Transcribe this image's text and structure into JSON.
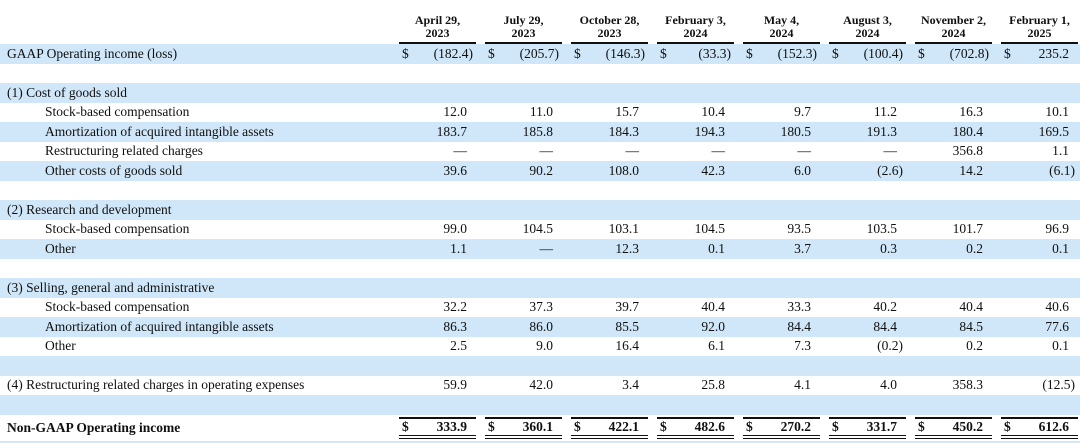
{
  "colors": {
    "row_shade": "#cfe7f8",
    "text": "#101010",
    "rule": "#101010"
  },
  "table": {
    "currency_symbol": "$",
    "columns": [
      {
        "line1": "April 29,",
        "line2": "2023"
      },
      {
        "line1": "July 29,",
        "line2": "2023"
      },
      {
        "line1": "October 28,",
        "line2": "2023"
      },
      {
        "line1": "February 3,",
        "line2": "2024"
      },
      {
        "line1": "May 4,",
        "line2": "2024"
      },
      {
        "line1": "August 3,",
        "line2": "2024"
      },
      {
        "line1": "November 2,",
        "line2": "2024"
      },
      {
        "line1": "February 1,",
        "line2": "2025"
      }
    ],
    "rows": [
      {
        "type": "data",
        "shaded": true,
        "dollar": true,
        "indent": 0,
        "label": "GAAP Operating income (loss)",
        "values": [
          "(182.4)",
          "(205.7)",
          "(146.3)",
          "(33.3)",
          "(152.3)",
          "(100.4)",
          "(702.8)",
          "235.2"
        ]
      },
      {
        "type": "spacer",
        "shaded": false
      },
      {
        "type": "section",
        "shaded": true,
        "label": "(1) Cost of goods sold"
      },
      {
        "type": "data",
        "shaded": false,
        "indent": 1,
        "label": "Stock-based compensation",
        "values": [
          "12.0",
          "11.0",
          "15.7",
          "10.4",
          "9.7",
          "11.2",
          "16.3",
          "10.1"
        ]
      },
      {
        "type": "data",
        "shaded": true,
        "indent": 1,
        "label": "Amortization of acquired intangible assets",
        "values": [
          "183.7",
          "185.8",
          "184.3",
          "194.3",
          "180.5",
          "191.3",
          "180.4",
          "169.5"
        ]
      },
      {
        "type": "data",
        "shaded": false,
        "indent": 1,
        "label": "Restructuring related charges",
        "values": [
          "—",
          "—",
          "—",
          "—",
          "—",
          "—",
          "356.8",
          "1.1"
        ]
      },
      {
        "type": "data",
        "shaded": true,
        "indent": 1,
        "label": "Other costs of goods sold",
        "values": [
          "39.6",
          "90.2",
          "108.0",
          "42.3",
          "6.0",
          "(2.6)",
          "14.2",
          "(6.1)"
        ]
      },
      {
        "type": "spacer",
        "shaded": false
      },
      {
        "type": "section",
        "shaded": true,
        "label": "(2) Research and development"
      },
      {
        "type": "data",
        "shaded": false,
        "indent": 1,
        "label": "Stock-based compensation",
        "values": [
          "99.0",
          "104.5",
          "103.1",
          "104.5",
          "93.5",
          "103.5",
          "101.7",
          "96.9"
        ]
      },
      {
        "type": "data",
        "shaded": true,
        "indent": 1,
        "label": "Other",
        "values": [
          "1.1",
          "—",
          "12.3",
          "0.1",
          "3.7",
          "0.3",
          "0.2",
          "0.1"
        ]
      },
      {
        "type": "spacer",
        "shaded": false
      },
      {
        "type": "section",
        "shaded": true,
        "label": "(3) Selling, general and administrative"
      },
      {
        "type": "data",
        "shaded": false,
        "indent": 1,
        "label": "Stock-based compensation",
        "values": [
          "32.2",
          "37.3",
          "39.7",
          "40.4",
          "33.3",
          "40.2",
          "40.4",
          "40.6"
        ]
      },
      {
        "type": "data",
        "shaded": true,
        "indent": 1,
        "label": "Amortization of acquired intangible assets",
        "values": [
          "86.3",
          "86.0",
          "85.5",
          "92.0",
          "84.4",
          "84.4",
          "84.5",
          "77.6"
        ]
      },
      {
        "type": "data",
        "shaded": false,
        "indent": 1,
        "label": "Other",
        "values": [
          "2.5",
          "9.0",
          "16.4",
          "6.1",
          "7.3",
          "(0.2)",
          "0.2",
          "0.1"
        ]
      },
      {
        "type": "spacer",
        "shaded": true
      },
      {
        "type": "data",
        "shaded": false,
        "indent": 0,
        "label": "(4) Restructuring related charges in operating expenses",
        "values": [
          "59.9",
          "42.0",
          "3.4",
          "25.8",
          "4.1",
          "4.0",
          "358.3",
          "(12.5)"
        ]
      },
      {
        "type": "spacer",
        "shaded": true
      },
      {
        "type": "total",
        "shaded": false,
        "dollar": true,
        "label": "Non-GAAP Operating income",
        "values": [
          "333.9",
          "360.1",
          "422.1",
          "482.6",
          "270.2",
          "331.7",
          "450.2",
          "612.6"
        ]
      },
      {
        "type": "spacer",
        "shaded": true
      }
    ]
  }
}
